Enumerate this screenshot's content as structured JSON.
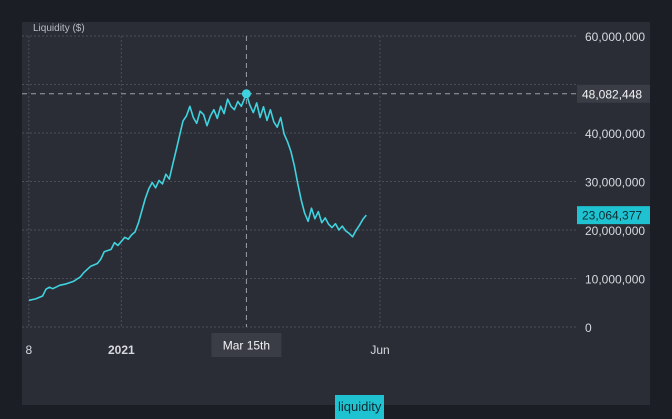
{
  "colors": {
    "line": "#3fd3df",
    "grid": "#4a4e57",
    "crosshair": "#9aa0a8",
    "badge_dark": "#3a3d45",
    "badge_accent": "#1fc2d1",
    "text": "#d7d9de"
  },
  "legend": {
    "label": "liquidity"
  },
  "crosshair": {
    "x_label": "Mar 15th",
    "y_label": "48,082,448"
  },
  "last_value_label": "23,064,377",
  "chart_data": {
    "type": "line",
    "title": "",
    "ylabel": "Liquidity ($)",
    "ylim": [
      0,
      60000000
    ],
    "y_ticks": [
      0,
      10000000,
      20000000,
      30000000,
      40000000,
      50000000,
      60000000
    ],
    "y_tick_labels": [
      "0",
      "10,000,000",
      "20,000,000",
      "30,000,000",
      "40,000,000",
      "",
      "60,000,000"
    ],
    "x_range": [
      "2020-11-04",
      "2021-09-24"
    ],
    "x_ticks": [
      {
        "label": "8",
        "date": "2020-11-08",
        "bold": false
      },
      {
        "label": "2021",
        "date": "2021-01-01",
        "bold": true
      },
      {
        "label": "Jun",
        "date": "2021-06-01",
        "bold": false
      }
    ],
    "grid": true,
    "legend_position": "bottom-center",
    "highlight": {
      "date": "2021-03-15",
      "value": 48082448
    },
    "last": {
      "date": "2021-05-24",
      "value": 23064377
    },
    "series": [
      {
        "name": "liquidity",
        "points": [
          [
            "2020-11-08",
            5500000
          ],
          [
            "2020-11-12",
            5800000
          ],
          [
            "2020-11-16",
            6400000
          ],
          [
            "2020-11-18",
            7800000
          ],
          [
            "2020-11-20",
            8200000
          ],
          [
            "2020-11-22",
            7900000
          ],
          [
            "2020-11-26",
            8600000
          ],
          [
            "2020-11-30",
            8900000
          ],
          [
            "2020-12-04",
            9400000
          ],
          [
            "2020-12-08",
            10300000
          ],
          [
            "2020-12-10",
            11200000
          ],
          [
            "2020-12-14",
            12500000
          ],
          [
            "2020-12-18",
            13100000
          ],
          [
            "2020-12-20",
            14000000
          ],
          [
            "2020-12-22",
            15500000
          ],
          [
            "2020-12-26",
            16000000
          ],
          [
            "2020-12-28",
            17400000
          ],
          [
            "2020-12-30",
            16800000
          ],
          [
            "2021-01-03",
            18500000
          ],
          [
            "2021-01-05",
            18100000
          ],
          [
            "2021-01-07",
            19000000
          ],
          [
            "2021-01-09",
            19600000
          ],
          [
            "2021-01-11",
            21500000
          ],
          [
            "2021-01-13",
            24000000
          ],
          [
            "2021-01-15",
            26500000
          ],
          [
            "2021-01-17",
            28500000
          ],
          [
            "2021-01-19",
            29800000
          ],
          [
            "2021-01-21",
            28700000
          ],
          [
            "2021-01-23",
            30200000
          ],
          [
            "2021-01-25",
            29500000
          ],
          [
            "2021-01-27",
            31500000
          ],
          [
            "2021-01-29",
            30500000
          ],
          [
            "2021-01-31",
            33500000
          ],
          [
            "2021-02-02",
            36500000
          ],
          [
            "2021-02-04",
            39500000
          ],
          [
            "2021-02-06",
            42500000
          ],
          [
            "2021-02-08",
            43500000
          ],
          [
            "2021-02-10",
            45500000
          ],
          [
            "2021-02-12",
            43200000
          ],
          [
            "2021-02-14",
            42000000
          ],
          [
            "2021-02-16",
            44500000
          ],
          [
            "2021-02-18",
            43800000
          ],
          [
            "2021-02-20",
            41500000
          ],
          [
            "2021-02-22",
            43500000
          ],
          [
            "2021-02-24",
            44800000
          ],
          [
            "2021-02-26",
            43000000
          ],
          [
            "2021-02-28",
            45500000
          ],
          [
            "2021-03-02",
            44000000
          ],
          [
            "2021-03-04",
            47000000
          ],
          [
            "2021-03-06",
            45500000
          ],
          [
            "2021-03-08",
            44800000
          ],
          [
            "2021-03-10",
            46500000
          ],
          [
            "2021-03-12",
            45500000
          ],
          [
            "2021-03-15",
            48082448
          ],
          [
            "2021-03-17",
            45800000
          ],
          [
            "2021-03-19",
            44200000
          ],
          [
            "2021-03-21",
            46200000
          ],
          [
            "2021-03-23",
            43200000
          ],
          [
            "2021-03-25",
            45400000
          ],
          [
            "2021-03-27",
            42600000
          ],
          [
            "2021-03-29",
            44800000
          ],
          [
            "2021-03-31",
            42300000
          ],
          [
            "2021-04-02",
            41200000
          ],
          [
            "2021-04-04",
            43200000
          ],
          [
            "2021-04-06",
            39800000
          ],
          [
            "2021-04-08",
            38200000
          ],
          [
            "2021-04-10",
            36200000
          ],
          [
            "2021-04-12",
            33200000
          ],
          [
            "2021-04-14",
            29500000
          ],
          [
            "2021-04-16",
            26200000
          ],
          [
            "2021-04-18",
            23500000
          ],
          [
            "2021-04-20",
            21800000
          ],
          [
            "2021-04-22",
            24500000
          ],
          [
            "2021-04-24",
            22300000
          ],
          [
            "2021-04-26",
            23800000
          ],
          [
            "2021-04-28",
            21500000
          ],
          [
            "2021-04-30",
            22500000
          ],
          [
            "2021-05-02",
            21200000
          ],
          [
            "2021-05-04",
            20500000
          ],
          [
            "2021-05-06",
            21300000
          ],
          [
            "2021-05-08",
            20000000
          ],
          [
            "2021-05-10",
            20800000
          ],
          [
            "2021-05-12",
            19800000
          ],
          [
            "2021-05-14",
            19300000
          ],
          [
            "2021-05-16",
            18600000
          ],
          [
            "2021-05-18",
            19900000
          ],
          [
            "2021-05-20",
            21000000
          ],
          [
            "2021-05-22",
            22200000
          ],
          [
            "2021-05-24",
            23064377
          ]
        ]
      }
    ]
  }
}
